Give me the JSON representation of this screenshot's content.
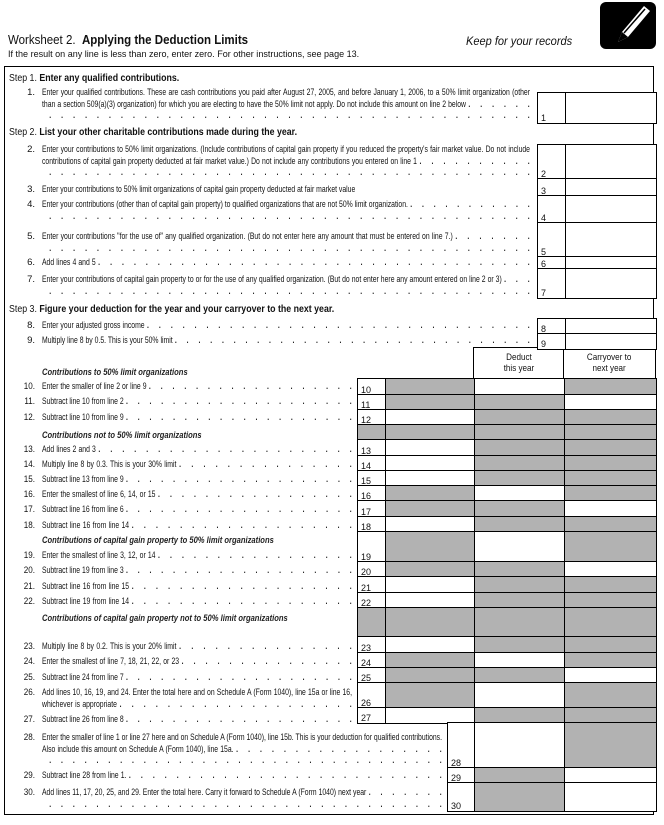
{
  "header": {
    "worksheet": "Worksheet 2.",
    "title": "Applying the Deduction Limits",
    "keep": "Keep for your records",
    "note": "If the result on any line is less than zero, enter zero. For other instructions, see page 13.",
    "icon": "pencil-icon"
  },
  "steps": [
    {
      "label": "Step 1.",
      "text": "Enter any qualified contributions."
    },
    {
      "label": "Step 2.",
      "text": "List your other charitable contributions made during the year."
    },
    {
      "label": "Step 3.",
      "text": "Figure your deduction for the year and your carryover to the next year."
    }
  ],
  "columns": {
    "deduct": "Deduct\nthis year",
    "carryover": "Carryover to\nnext year"
  },
  "sections": [
    "Contributions to 50% limit organizations",
    "Contributions not to 50% limit organizations",
    "Contributions of capital gain property to 50% limit organizations",
    "Contributions of capital gain property not to 50% limit organizations"
  ],
  "lines": [
    {
      "num": "1.",
      "box": "1",
      "text": "Enter your qualified contributions. These are cash contributions you paid after August 27, 2005, and before January 1, 2006, to a 50% limit organization (other than a section 509(a)(3) organization) for which you are electing to have the 50% limit not apply. Do not include this amount on line 2 below"
    },
    {
      "num": "2.",
      "box": "2",
      "text": "Enter your contributions to 50% limit organizations. (Include contributions of capital gain property if you reduced the property's fair market value. Do not include contributions of capital gain property deducted at fair market value.) Do not include any contributions you entered on line 1"
    },
    {
      "num": "3.",
      "box": "3",
      "text": "Enter your contributions to 50% limit organizations of capital gain property deducted at fair market value"
    },
    {
      "num": "4.",
      "box": "4",
      "text": "Enter your contributions (other than of capital gain property) to qualified organizations that are not 50% limit organization."
    },
    {
      "num": "5.",
      "box": "5",
      "text": "Enter your contributions \"for the use of\" any qualified organization. (But do not enter here any amount that must be entered on line 7.)"
    },
    {
      "num": "6.",
      "box": "6",
      "text": "Add lines 4 and 5"
    },
    {
      "num": "7.",
      "box": "7",
      "text": "Enter your contributions of capital gain property to or for the use of any qualified organization. (But do not enter here any amount entered on line 2 or 3)"
    },
    {
      "num": "8.",
      "box": "8",
      "text": "Enter your adjusted gross income"
    },
    {
      "num": "9.",
      "box": "9",
      "text": "Multiply line 8 by 0.5. This is your 50% limit"
    },
    {
      "num": "10.",
      "box": "10",
      "text": "Enter the smaller of line 2 or line 9"
    },
    {
      "num": "11.",
      "box": "11",
      "text": "Subtract line 10 from line 2"
    },
    {
      "num": "12.",
      "box": "12",
      "text": "Subtract line 10 from line 9"
    },
    {
      "num": "13.",
      "box": "13",
      "text": "Add lines 2 and 3"
    },
    {
      "num": "14.",
      "box": "14",
      "text": "Multiply line 8 by 0.3. This is your 30% limit"
    },
    {
      "num": "15.",
      "box": "15",
      "text": "Subtract line 13 from line 9"
    },
    {
      "num": "16.",
      "box": "16",
      "text": "Enter the smallest of line 6, 14, or 15"
    },
    {
      "num": "17.",
      "box": "17",
      "text": "Subtract line 16 from line 6"
    },
    {
      "num": "18.",
      "box": "18",
      "text": "Subtract line 16 from line 14"
    },
    {
      "num": "19.",
      "box": "19",
      "text": "Enter the smallest of line 3, 12, or 14"
    },
    {
      "num": "20.",
      "box": "20",
      "text": "Subtract line 19 from line 3"
    },
    {
      "num": "21.",
      "box": "21",
      "text": "Subtract line 16 from line 15"
    },
    {
      "num": "22.",
      "box": "22",
      "text": "Subtract line 19 from line 14"
    },
    {
      "num": "23.",
      "box": "23",
      "text": "Multiply line 8 by 0.2. This is your 20% limit"
    },
    {
      "num": "24.",
      "box": "24",
      "text": "Enter the smallest of line 7, 18, 21, 22, or 23"
    },
    {
      "num": "25.",
      "box": "25",
      "text": "Subtract line 24 from line 7"
    },
    {
      "num": "26.",
      "box": "26",
      "text": "Add lines 10, 16, 19, and 24. Enter the total here and on Schedule A (Form 1040), line 15a or line 16, whichever is appropriate"
    },
    {
      "num": "27.",
      "box": "27",
      "text": "Subtract line 26 from line 8"
    },
    {
      "num": "28.",
      "box": "28",
      "text": "Enter the smaller of line 1 or line 27 here and on Schedule A (Form 1040), line 15b. This is your deduction for qualified contributions. Also include this amount on Schedule A (Form 1040), line 15a."
    },
    {
      "num": "29.",
      "box": "29",
      "text": "Subtract line 28 from line 1."
    },
    {
      "num": "30.",
      "box": "30",
      "text": "Add lines 11, 17, 20, 25, and 29. Enter the total here. Carry it forward to Schedule A (Form 1040) next year"
    }
  ],
  "colors": {
    "shade": "#b2b2b2",
    "ink": "#111111"
  }
}
